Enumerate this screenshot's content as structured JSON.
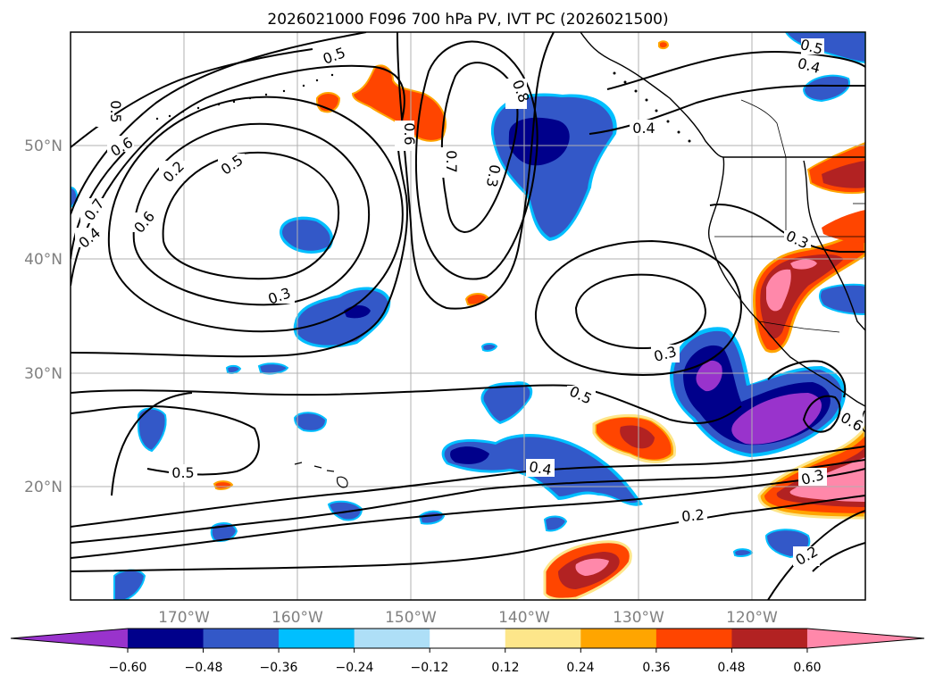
{
  "title": "2026021000 F096 700 hPa PV, IVT PC (2026021500)",
  "lon_labels": [
    "170°W",
    "160°W",
    "150°W",
    "140°W",
    "130°W",
    "120°W"
  ],
  "lat_labels": [
    "50°N",
    "40°N",
    "30°N",
    "20°N"
  ],
  "colorbar": {
    "ticks": [
      "−0.60",
      "−0.48",
      "−0.36",
      "−0.24",
      "−0.12",
      "0.12",
      "0.24",
      "0.36",
      "0.48",
      "0.60"
    ],
    "colors": [
      "#9933cc",
      "#00008b",
      "#3358c8",
      "#00bfff",
      "#aedff7",
      "#ffffff",
      "#fde68a",
      "#ffa500",
      "#ff4500",
      "#b22222",
      "#ff88aa"
    ]
  },
  "contour_labels": [
    "0.5",
    "0.4",
    "0.5",
    "0.6",
    "0.5",
    "0.7",
    "0.4",
    "0.6",
    "0.2",
    "0.5",
    "0.6",
    "0.7",
    "0.8",
    "0.3",
    "0.4",
    "0.3",
    "0.3",
    "0.3",
    "0.5",
    "0.4",
    "0.5",
    "0.2",
    "0.3",
    "0.2",
    "0.6"
  ]
}
